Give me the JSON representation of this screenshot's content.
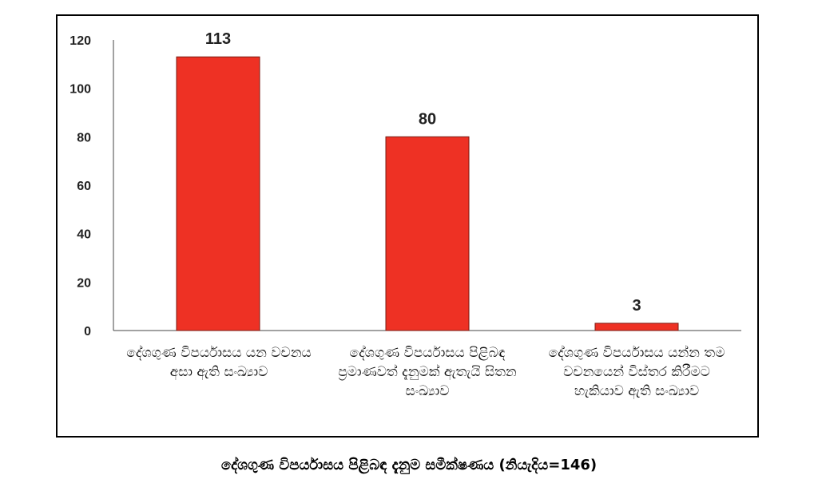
{
  "chart_data": {
    "type": "bar",
    "categories": [
      "දේශගුණ විපර්යාසය යන වචනය අසා ඇති සංඛ්‍යාව",
      "දේශගුණ විපර්යාසය පිළිබඳ ප්‍රමාණවත් දැනුමක් ඇතැයි සිතන සංඛ්‍යාව",
      "දේශගුණ විපර්යාසය යන්න තම වචනයෙන් විස්තර කිරීමට හැකියාව ඇති සංඛ්‍යාව"
    ],
    "values": [
      113,
      80,
      3
    ],
    "value_labels": [
      "113",
      "80",
      "3"
    ],
    "yticks": [
      "0",
      "20",
      "40",
      "60",
      "80",
      "100",
      "120"
    ],
    "ylim": [
      0,
      120
    ],
    "bar_color": "#ee3124",
    "bar_border": "#7a1a12",
    "grid": false,
    "title": ""
  },
  "caption": "දේශගුණ විපර්යාසය පිළිබඳ දැනුම සමීක්ෂණය (නියැදිය=146)"
}
